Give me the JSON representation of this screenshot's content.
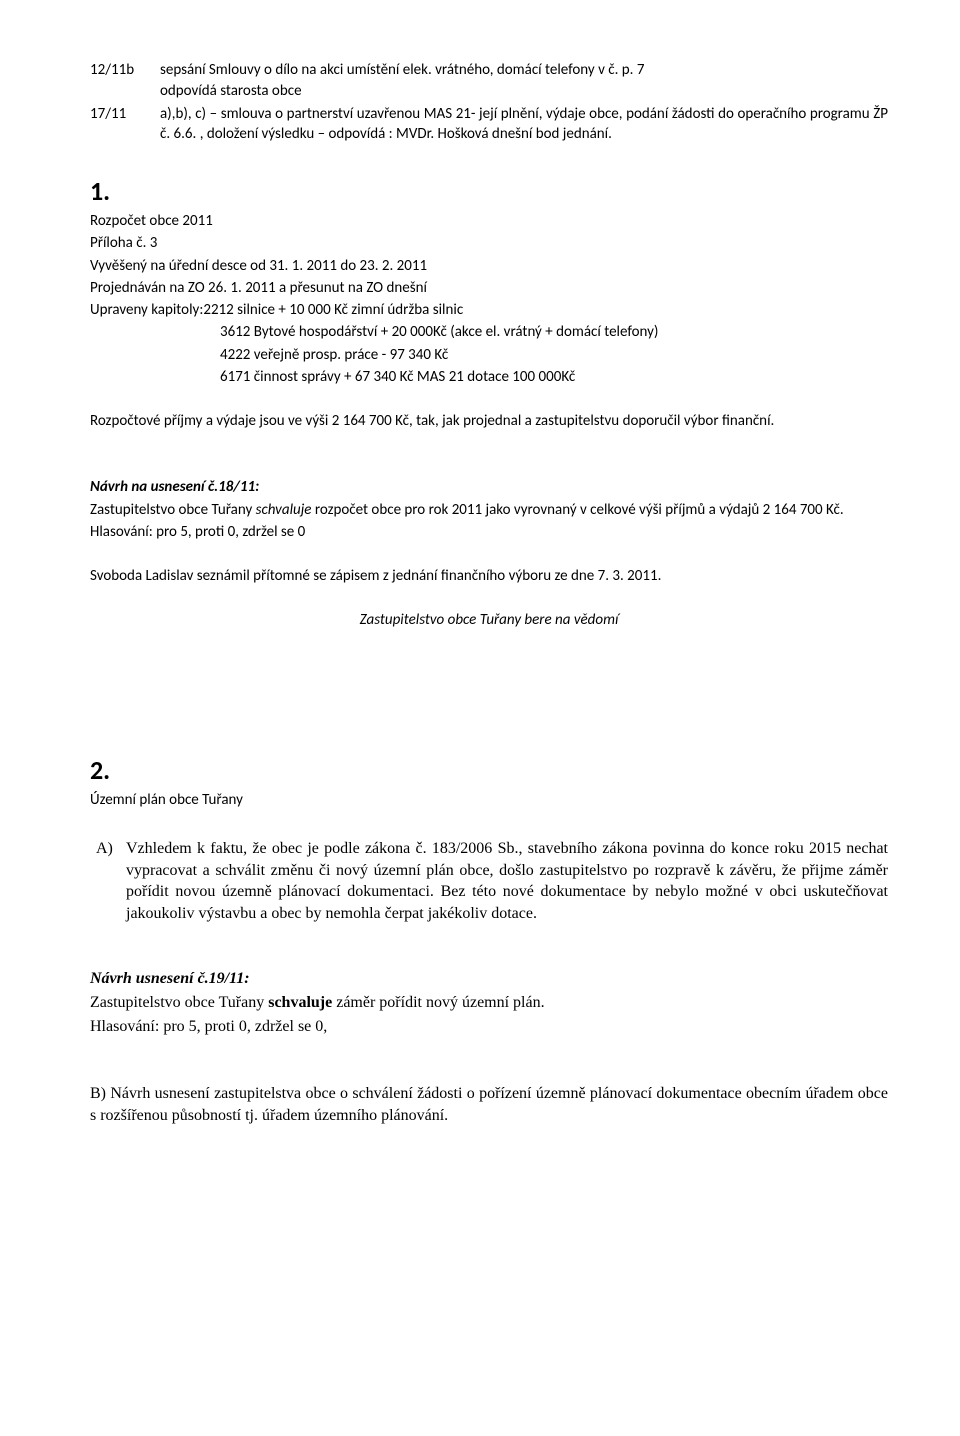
{
  "top": {
    "r1_left": "12/11b",
    "r1_right": "sepsání Smlouvy o dílo na akci umístění elek. vrátného, domácí telefony v č. p. 7",
    "r1b": "odpovídá starosta obce",
    "r2_left": "17/11",
    "r2_right": "a),b), c) – smlouva o partnerství  uzavřenou MAS 21- její plnění, výdaje obce, podání žádosti do operačního programu ŽP č. 6.6. , doložení výsledku – odpovídá : MVDr. Hošková dnešní bod jednání."
  },
  "sec1": {
    "num": "1.",
    "l1": "Rozpočet obce 2011",
    "l2": "Příloha č. 3",
    "l3": "Vyvěšený na úřední desce od 31. 1. 2011 do 23. 2. 2011",
    "l4": "Projednáván na ZO 26. 1. 2011 a přesunut na ZO dnešní",
    "l5": "Upraveny kapitoly:2212 silnice + 10 000 Kč zimní údržba silnic",
    "l6": "3612 Bytové hospodářství  + 20 000Kč (akce el. vrátný + domácí telefony)",
    "l7": "4222 veřejně prosp. práce   - 97 340 Kč",
    "l8": "6171 činnost správy           + 67 340 Kč MAS 21 dotace 100 000Kč",
    "p1": "Rozpočtové příjmy a výdaje jsou ve výši 2 164 700 Kč, tak, jak projednal a zastupitelstvu doporučil výbor finanční.",
    "nav_label": "Návrh na usnesení č.18/11:",
    "nav_text_a": "Zastupitelstvo obce Tuřany ",
    "nav_text_b": "schvaluje",
    "nav_text_c": " rozpočet obce pro rok 2011 jako vyrovnaný v celkové výši příjmů a výdajů 2 164 700 Kč.",
    "vote": "Hlasování: pro 5, proti 0, zdržel se 0",
    "svoboda": "Svoboda Ladislav seznámil přítomné se zápisem z jednání finančního výboru ze dne 7. 3. 2011.",
    "takes_note": "Zastupitelstvo obce Tuřany bere na vědomí"
  },
  "sec2": {
    "num": "2.",
    "title": "Územní plán obce Tuřany",
    "A_marker": "A)",
    "A_text": "Vzhledem k faktu, že obec je podle zákona č. 183/2006 Sb., stavebního zákona povinna do konce roku 2015 nechat vypracovat a schválit změnu či nový územní plán obce, došlo zastupitelstvo po rozpravě k závěru, že přijme záměr pořídit novou územně plánovací dokumentaci. Bez této nové dokumentace by nebylo možné v obci uskutečňovat jakoukoliv výstavbu a obec by nemohla čerpat jakékoliv dotace.",
    "nav_label": "Návrh usnesení č.19/11:",
    "nav_text_a": "Zastupitelstvo obce Tuřany ",
    "nav_text_b": "schvaluje",
    "nav_text_c": " záměr pořídit nový územní plán.",
    "vote": "Hlasování: pro 5, proti 0, zdržel se 0,",
    "B_text": "B) Návrh usnesení zastupitelstva obce o schválení žádosti o pořízení územně plánovací dokumentace obecním úřadem obce s rozšířenou působností tj. úřadem územního plánování."
  }
}
